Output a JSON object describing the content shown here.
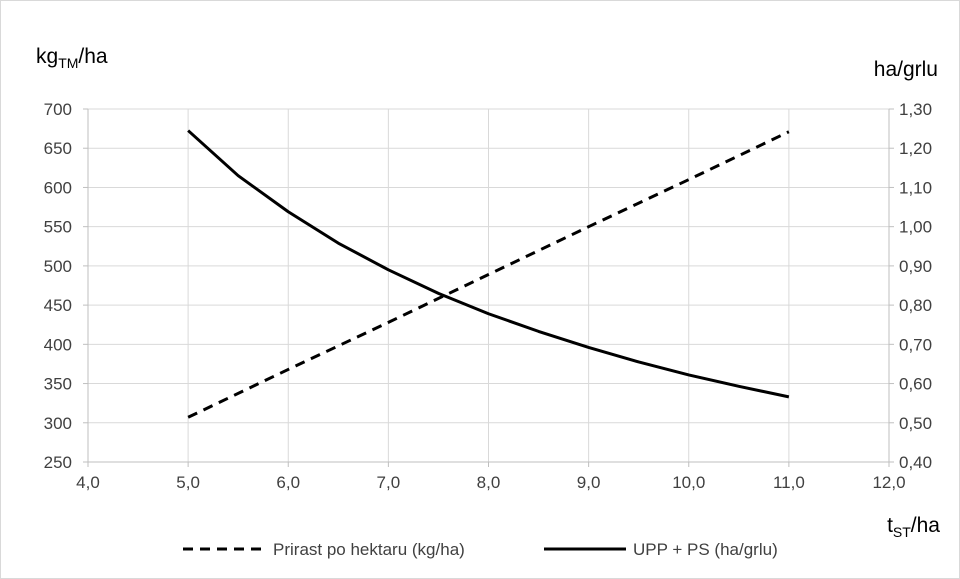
{
  "chart_data": {
    "type": "line",
    "xlabel": {
      "base": "t",
      "sub": "ST",
      "rest": "/ha"
    },
    "ylabel_left": {
      "base": "kg",
      "sub": "TM",
      "rest": "/ha"
    },
    "ylabel_right": "ha/grlu",
    "xlim": [
      4.0,
      12.0
    ],
    "xticks": [
      "4,0",
      "5,0",
      "6,0",
      "7,0",
      "8,0",
      "9,0",
      "10,0",
      "11,0",
      "12,0"
    ],
    "ylim_left": [
      250,
      700
    ],
    "yticks_left": [
      "250",
      "300",
      "350",
      "400",
      "450",
      "500",
      "550",
      "600",
      "650",
      "700"
    ],
    "ylim_right": [
      0.4,
      1.3
    ],
    "yticks_right": [
      "0,40",
      "0,50",
      "0,60",
      "0,70",
      "0,80",
      "0,90",
      "1,00",
      "1,10",
      "1,20",
      "1,30"
    ],
    "grid": true,
    "legend_position": "bottom",
    "series": [
      {
        "name": "Prirast po hektaru (kg/ha)",
        "axis": "left",
        "style": "dashed",
        "color": "#000000",
        "x": [
          5.0,
          6.0,
          7.0,
          8.0,
          9.0,
          10.0,
          11.0
        ],
        "values": [
          307,
          368,
          428,
          489,
          550,
          610,
          671
        ]
      },
      {
        "name": "UPP + PS (ha/grlu)",
        "axis": "right",
        "style": "solid",
        "color": "#000000",
        "x": [
          5.0,
          5.5,
          6.0,
          6.5,
          7.0,
          7.5,
          8.0,
          8.5,
          9.0,
          9.5,
          10.0,
          10.5,
          11.0
        ],
        "values": [
          1.245,
          1.13,
          1.038,
          0.958,
          0.89,
          0.83,
          0.778,
          0.733,
          0.692,
          0.655,
          0.622,
          0.593,
          0.566
        ]
      }
    ]
  }
}
